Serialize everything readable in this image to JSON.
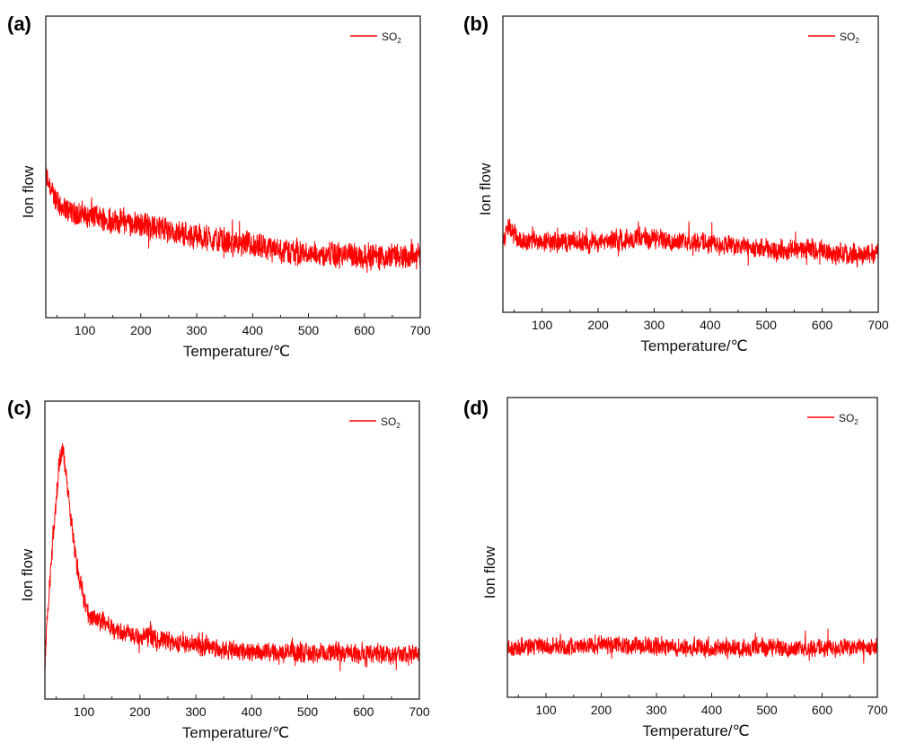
{
  "chart_data": [
    {
      "type": "line",
      "panel_label": "(a)",
      "xlabel": "Temperature/℃",
      "ylabel": "Ion flow",
      "xlim": [
        30,
        700
      ],
      "ylim": [
        0,
        100
      ],
      "xticks": [
        "100",
        "200",
        "300",
        "400",
        "500",
        "600",
        "700"
      ],
      "legend": {
        "label": "SO",
        "subscript": "2",
        "position": "top-right"
      },
      "series": [
        {
          "name": "SO2",
          "color": "#ff0000",
          "noise": 5,
          "trend": [
            [
              30,
              47
            ],
            [
              40,
              42
            ],
            [
              60,
              36
            ],
            [
              100,
              34
            ],
            [
              200,
              31
            ],
            [
              300,
              27
            ],
            [
              400,
              23.5
            ],
            [
              500,
              21
            ],
            [
              600,
              20.5
            ],
            [
              700,
              20.5
            ]
          ]
        }
      ]
    },
    {
      "type": "line",
      "panel_label": "(b)",
      "xlabel": "Temperature/℃",
      "ylabel": "Ion flow",
      "xlim": [
        30,
        700
      ],
      "ylim": [
        0,
        100
      ],
      "xticks": [
        "100",
        "200",
        "300",
        "400",
        "500",
        "600",
        "700"
      ],
      "legend": {
        "label": "SO",
        "subscript": "2",
        "position": "top-right"
      },
      "series": [
        {
          "name": "SO2",
          "color": "#ff0000",
          "noise": 4,
          "trend": [
            [
              30,
              24
            ],
            [
              40,
              29
            ],
            [
              60,
              24
            ],
            [
              200,
              23.5
            ],
            [
              260,
              25
            ],
            [
              370,
              24
            ],
            [
              500,
              21
            ],
            [
              600,
              21
            ],
            [
              650,
              19
            ],
            [
              700,
              20
            ]
          ]
        }
      ]
    },
    {
      "type": "line",
      "panel_label": "(c)",
      "xlabel": "Temperature/℃",
      "ylabel": "Ion flow",
      "xlim": [
        30,
        700
      ],
      "ylim": [
        0,
        100
      ],
      "xticks": [
        "100",
        "200",
        "300",
        "400",
        "500",
        "600",
        "700"
      ],
      "legend": {
        "label": "SO",
        "subscript": "2",
        "position": "top-right"
      },
      "series": [
        {
          "name": "SO2",
          "color": "#ff0000",
          "noise": 4,
          "trend": [
            [
              30,
              12
            ],
            [
              35,
              30
            ],
            [
              45,
              55
            ],
            [
              55,
              78
            ],
            [
              62,
              84
            ],
            [
              70,
              72
            ],
            [
              80,
              55
            ],
            [
              90,
              42
            ],
            [
              100,
              33
            ],
            [
              110,
              28
            ],
            [
              150,
              24
            ],
            [
              200,
              21
            ],
            [
              300,
              18
            ],
            [
              400,
              16
            ],
            [
              500,
              15.5
            ],
            [
              700,
              15
            ]
          ]
        }
      ]
    },
    {
      "type": "line",
      "panel_label": "(d)",
      "xlabel": "Temperature/℃",
      "ylabel": "Ion flow",
      "xlim": [
        30,
        700
      ],
      "ylim": [
        0,
        100
      ],
      "xticks": [
        "100",
        "200",
        "300",
        "400",
        "500",
        "600",
        "700"
      ],
      "legend": {
        "label": "SO",
        "subscript": "2",
        "position": "top-right"
      },
      "series": [
        {
          "name": "SO2",
          "color": "#ff0000",
          "noise": 3.5,
          "trend": [
            [
              30,
              16.5
            ],
            [
              200,
              17.5
            ],
            [
              400,
              16.5
            ],
            [
              700,
              16.5
            ]
          ]
        }
      ]
    }
  ]
}
